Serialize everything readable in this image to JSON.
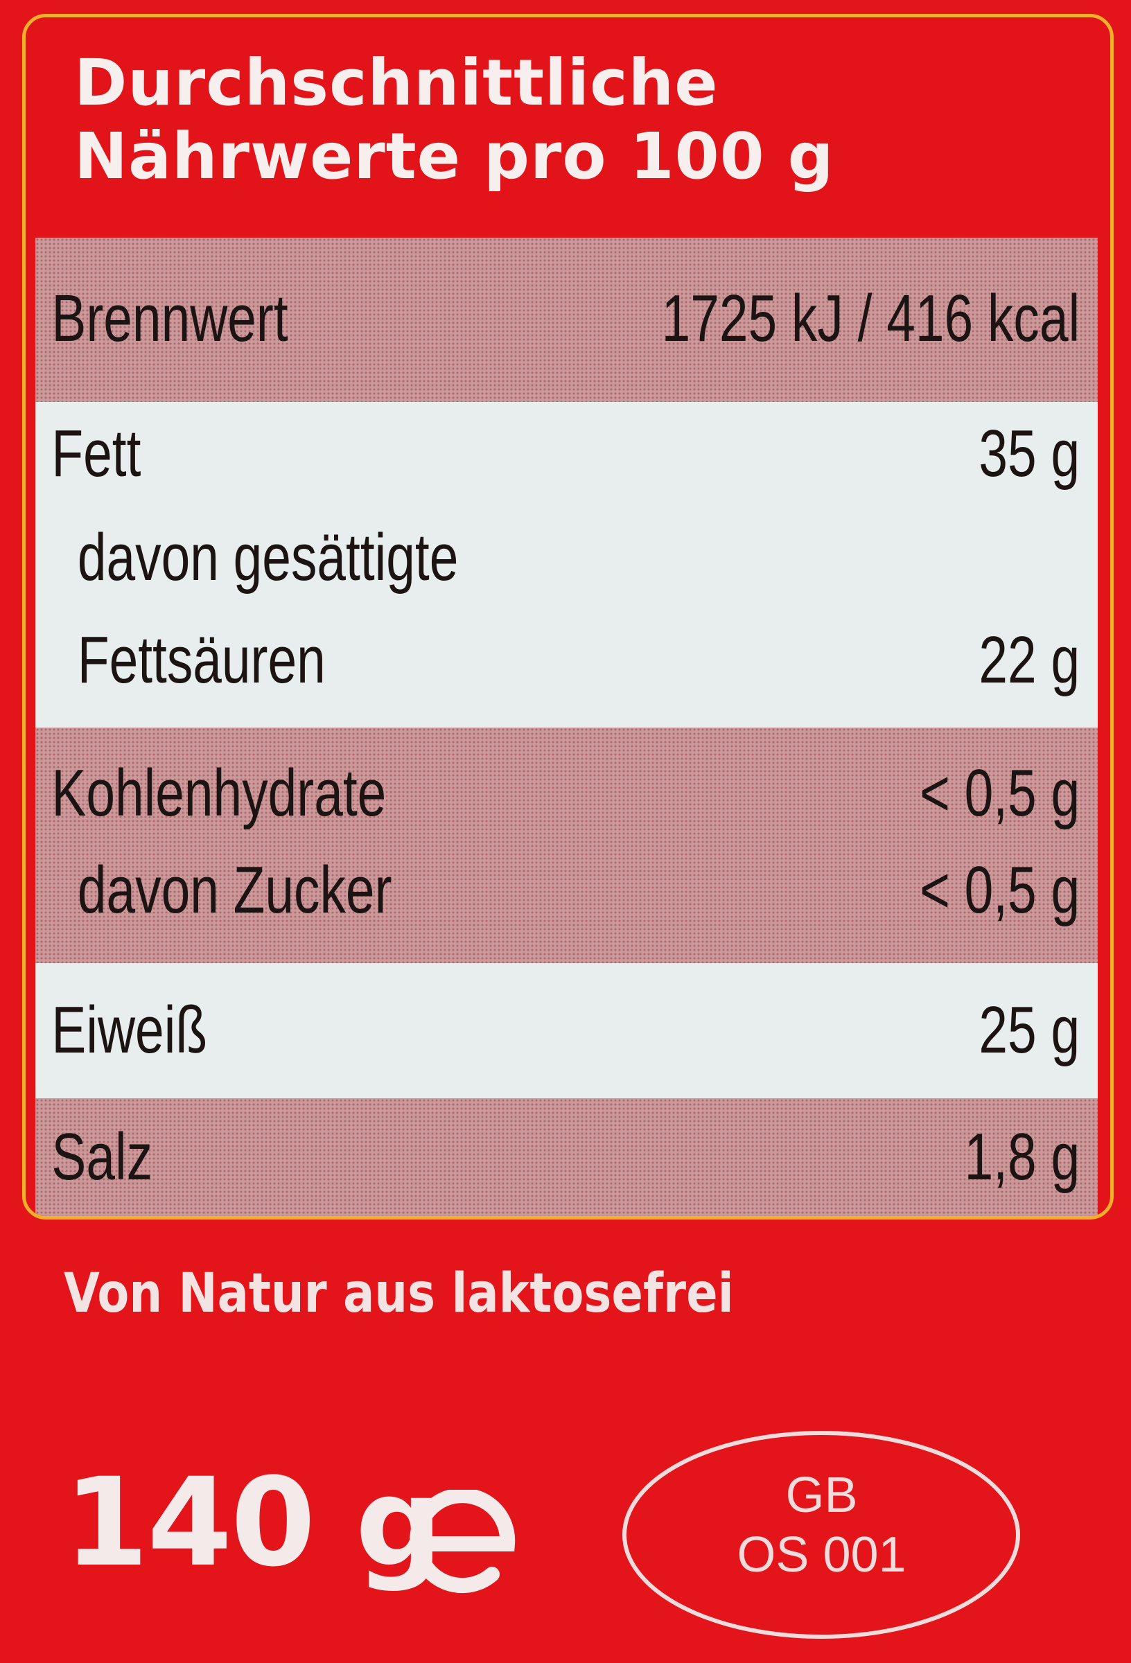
{
  "header": {
    "title": "Durchschnittliche\nNährwerte pro 100 g"
  },
  "nutrition": {
    "energy": {
      "label": "Brennwert",
      "value": "1725 kJ / 416 kcal"
    },
    "fat": {
      "label": "Fett",
      "value": "35 g"
    },
    "saturated_label_line1": "davon gesättigte",
    "saturated": {
      "label": "Fettsäuren",
      "value": "22 g"
    },
    "carbohydrates": {
      "label": "Kohlenhydrate",
      "value": "< 0,5 g"
    },
    "sugars": {
      "label": "davon Zucker",
      "value": "< 0,5 g"
    },
    "protein": {
      "label": "Eiweiß",
      "value": "25 g"
    },
    "salt": {
      "label": "Salz",
      "value": "1,8 g"
    }
  },
  "footer": {
    "claim": "Von Natur aus laktosefrei",
    "net_weight": "140 g",
    "estimate_mark": "℮",
    "health_mark": "GB\nOS 001"
  },
  "colors": {
    "background": "#e4141b",
    "frame": "#f2b02a",
    "pink_band": "#c99a9c",
    "white_band": "#e8eded",
    "text_dark": "#1c1412",
    "text_light": "#f4eaea"
  }
}
